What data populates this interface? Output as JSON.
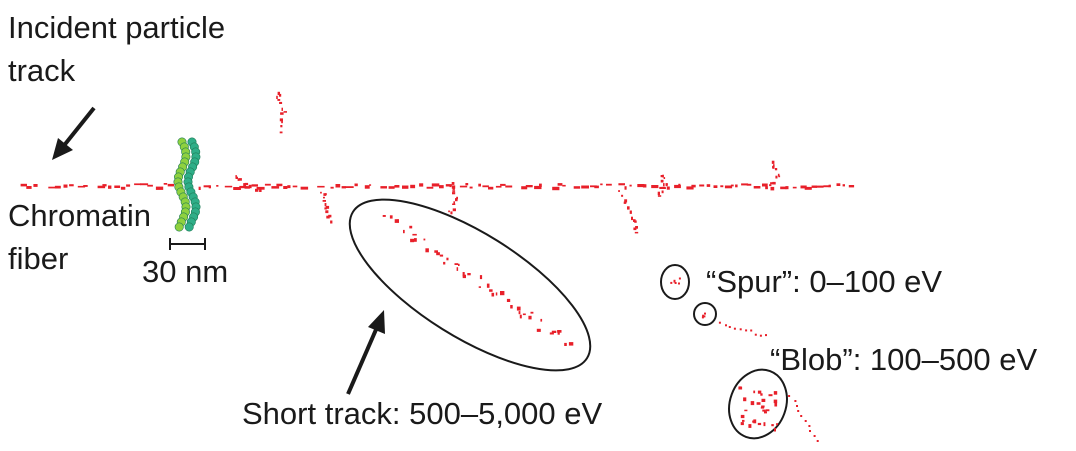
{
  "labels": {
    "incident_line1": "Incident particle",
    "incident_line2": "track",
    "chromatin_line1": "Chromatin",
    "chromatin_line2": "fiber",
    "scale_bar": "30 nm",
    "short_track": "Short track: 500–5,000 eV",
    "spur": "“Spur”: 0–100 eV",
    "blob": "“Blob”: 100–500 eV"
  },
  "colors": {
    "track": "#e8202a",
    "chromatin_light": "#8fd13f",
    "chromatin_dark": "#2fae88",
    "ink": "#1a1a1a"
  },
  "icons": {
    "incident_arrow": "arrow-down-left-icon",
    "short_track_arrow": "arrow-up-right-icon"
  }
}
